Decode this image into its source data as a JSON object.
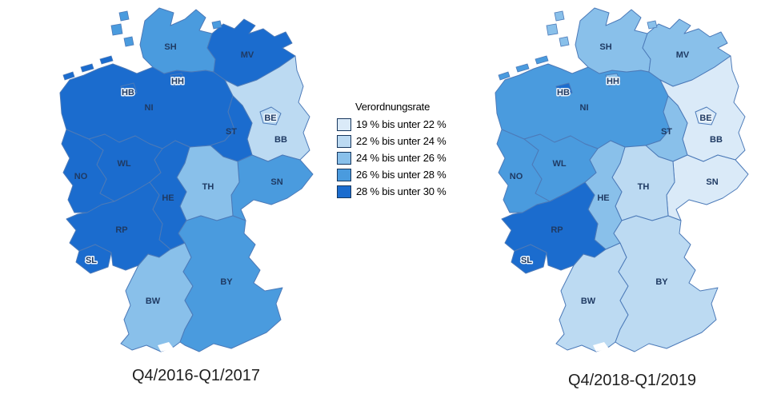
{
  "legend": {
    "title": "Verordnungsrate",
    "classes": [
      {
        "label": "19 % bis unter 22 %",
        "color": "#DAEAF8"
      },
      {
        "label": "22 % bis unter 24 %",
        "color": "#BCDAF2"
      },
      {
        "label": "24 % bis unter 26 %",
        "color": "#89C0EA"
      },
      {
        "label": "26 % bis unter 28 %",
        "color": "#4A9BDE"
      },
      {
        "label": "28 % bis unter 30 %",
        "color": "#1B6CCE"
      }
    ]
  },
  "regions": [
    {
      "id": "SH",
      "label": "SH"
    },
    {
      "id": "HH",
      "label": "HH"
    },
    {
      "id": "MV",
      "label": "MV"
    },
    {
      "id": "HB",
      "label": "HB"
    },
    {
      "id": "NI",
      "label": "NI"
    },
    {
      "id": "BE",
      "label": "BE"
    },
    {
      "id": "BB",
      "label": "BB"
    },
    {
      "id": "ST",
      "label": "ST"
    },
    {
      "id": "SN",
      "label": "SN"
    },
    {
      "id": "TH",
      "label": "TH"
    },
    {
      "id": "WL",
      "label": "WL"
    },
    {
      "id": "NO",
      "label": "NO"
    },
    {
      "id": "HE",
      "label": "HE"
    },
    {
      "id": "RP",
      "label": "RP"
    },
    {
      "id": "SL",
      "label": "SL"
    },
    {
      "id": "BW",
      "label": "BW"
    },
    {
      "id": "BY",
      "label": "BY"
    }
  ],
  "colors": {
    "background": "#FFFFFF",
    "region_border": "#4C7AB8",
    "label_text": "#1F3A63",
    "caption_text": "#1F1F1F"
  },
  "chart_data": {
    "type": "choropleth",
    "title": "Verordnungsrate",
    "unit": "%",
    "class_breaks": [
      19,
      22,
      24,
      26,
      28,
      30
    ],
    "class_labels": [
      "19 % bis unter 22 %",
      "22 % bis unter 24 %",
      "24 % bis unter 26 %",
      "26 % bis unter 28 %",
      "28 % bis unter 30 %"
    ],
    "maps": [
      {
        "caption": "Q4/2016-Q1/2017",
        "region_class_index": {
          "SH": 3,
          "HH": 4,
          "MV": 4,
          "HB": 4,
          "NI": 4,
          "BE": 1,
          "BB": 1,
          "ST": 4,
          "SN": 3,
          "TH": 2,
          "WL": 4,
          "NO": 4,
          "HE": 4,
          "RP": 4,
          "SL": 4,
          "BW": 2,
          "BY": 3
        }
      },
      {
        "caption": "Q4/2018-Q1/2019",
        "region_class_index": {
          "SH": 2,
          "HH": 2,
          "MV": 2,
          "HB": 4,
          "NI": 3,
          "BE": 0,
          "BB": 0,
          "ST": 2,
          "SN": 0,
          "TH": 1,
          "WL": 3,
          "NO": 3,
          "HE": 2,
          "RP": 4,
          "SL": 4,
          "BW": 1,
          "BY": 1
        }
      }
    ]
  }
}
